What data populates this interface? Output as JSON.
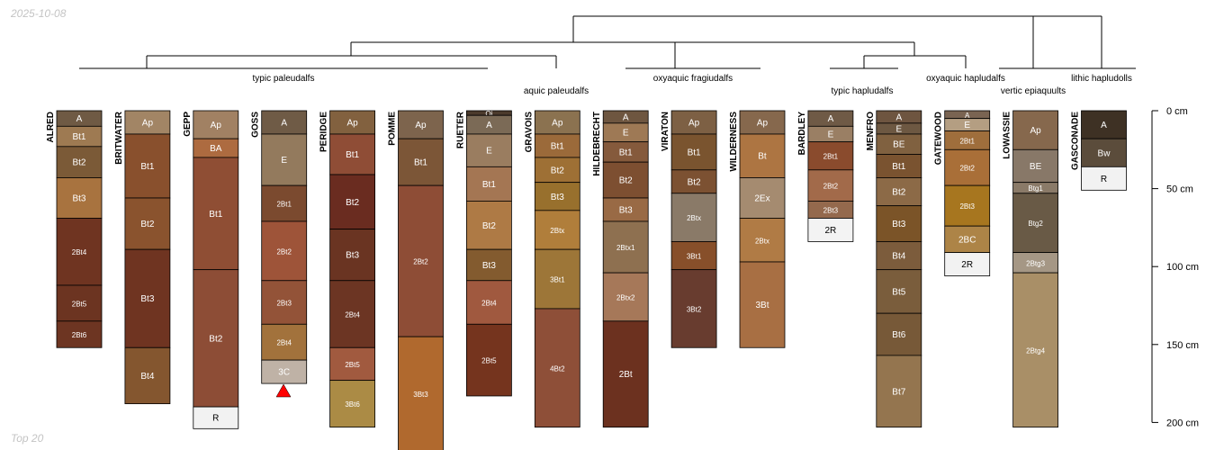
{
  "date": "2025-10-08",
  "footer": "Top 20",
  "depth_axis": {
    "unit": "cm",
    "ticks": [
      0,
      50,
      100,
      150,
      200
    ]
  },
  "groups": [
    {
      "label": "typic paleudalfs"
    },
    {
      "label": "aquic paleudalfs"
    },
    {
      "label": "oxyaquic fragiudalfs"
    },
    {
      "label": "typic hapludalfs"
    },
    {
      "label": "oxyaquic hapludalfs"
    },
    {
      "label": "vertic epiaquults"
    },
    {
      "label": "lithic hapludolls"
    }
  ],
  "profiles": [
    {
      "name": "ALRED",
      "horizons": [
        {
          "name": "A",
          "top": 0,
          "bottom": 10,
          "color": "#6f5a44"
        },
        {
          "name": "Bt1",
          "top": 10,
          "bottom": 23,
          "color": "#9e7a52"
        },
        {
          "name": "Bt2",
          "top": 23,
          "bottom": 43,
          "color": "#7b5a37"
        },
        {
          "name": "Bt3",
          "top": 43,
          "bottom": 69,
          "color": "#a8733f"
        },
        {
          "name": "2Bt4",
          "top": 69,
          "bottom": 112,
          "color": "#6f3421"
        },
        {
          "name": "2Bt5",
          "top": 112,
          "bottom": 135,
          "color": "#6c3421"
        },
        {
          "name": "2Bt6",
          "top": 135,
          "bottom": 152,
          "color": "#6d3522"
        }
      ]
    },
    {
      "name": "BRITWATER",
      "horizons": [
        {
          "name": "Ap",
          "top": 0,
          "bottom": 15,
          "color": "#a28565"
        },
        {
          "name": "Bt1",
          "top": 15,
          "bottom": 56,
          "color": "#89502d"
        },
        {
          "name": "Bt2",
          "top": 56,
          "bottom": 89,
          "color": "#8a532e"
        },
        {
          "name": "Bt3",
          "top": 89,
          "bottom": 152,
          "color": "#6f3421"
        },
        {
          "name": "Bt4",
          "top": 152,
          "bottom": 188,
          "color": "#84562f"
        }
      ]
    },
    {
      "name": "GEPP",
      "horizons": [
        {
          "name": "Ap",
          "top": 0,
          "bottom": 18,
          "color": "#a18163"
        },
        {
          "name": "BA",
          "top": 18,
          "bottom": 30,
          "color": "#ad6b40"
        },
        {
          "name": "Bt1",
          "top": 30,
          "bottom": 102,
          "color": "#8f4e34"
        },
        {
          "name": "Bt2",
          "top": 102,
          "bottom": 190,
          "color": "#8d4d36"
        },
        {
          "name": "R",
          "top": 190,
          "bottom": 204,
          "color": "#f2f2f2"
        }
      ]
    },
    {
      "name": "GOSS",
      "horizons": [
        {
          "name": "A",
          "top": 0,
          "bottom": 15,
          "color": "#6f5b46"
        },
        {
          "name": "E",
          "top": 15,
          "bottom": 48,
          "color": "#937a5d"
        },
        {
          "name": "2Bt1",
          "top": 48,
          "bottom": 71,
          "color": "#7b4a2f"
        },
        {
          "name": "2Bt2",
          "top": 71,
          "bottom": 109,
          "color": "#9e5439"
        },
        {
          "name": "2Bt3",
          "top": 109,
          "bottom": 137,
          "color": "#935338"
        },
        {
          "name": "2Bt4",
          "top": 137,
          "bottom": 160,
          "color": "#a2723c"
        },
        {
          "name": "3C",
          "top": 160,
          "bottom": 175,
          "color": "#bfb2a6"
        }
      ]
    },
    {
      "name": "PERIDGE",
      "horizons": [
        {
          "name": "Ap",
          "top": 0,
          "bottom": 15,
          "color": "#82613f"
        },
        {
          "name": "Bt1",
          "top": 15,
          "bottom": 41,
          "color": "#8f4d36"
        },
        {
          "name": "Bt2",
          "top": 41,
          "bottom": 76,
          "color": "#6a2c20"
        },
        {
          "name": "Bt3",
          "top": 76,
          "bottom": 109,
          "color": "#6a3422"
        },
        {
          "name": "2Bt4",
          "top": 109,
          "bottom": 152,
          "color": "#6c3523"
        },
        {
          "name": "2Bt5",
          "top": 152,
          "bottom": 173,
          "color": "#a15a3f"
        },
        {
          "name": "3Bt6",
          "top": 173,
          "bottom": 203,
          "color": "#ab8b45"
        }
      ]
    },
    {
      "name": "POMME",
      "horizons": [
        {
          "name": "Ap",
          "top": 0,
          "bottom": 18,
          "color": "#7d644d"
        },
        {
          "name": "Bt1",
          "top": 18,
          "bottom": 48,
          "color": "#7c5637"
        },
        {
          "name": "2Bt2",
          "top": 48,
          "bottom": 145,
          "color": "#8e4d36"
        },
        {
          "name": "3Bt3",
          "top": 145,
          "bottom": 218,
          "color": "#b0692e"
        }
      ]
    },
    {
      "name": "RUETER",
      "horizons": [
        {
          "name": "Oi",
          "top": 0,
          "bottom": 3,
          "color": "#4b3a2c"
        },
        {
          "name": "A",
          "top": 3,
          "bottom": 15,
          "color": "#7b6a56"
        },
        {
          "name": "E",
          "top": 15,
          "bottom": 36,
          "color": "#9a7d60"
        },
        {
          "name": "Bt1",
          "top": 36,
          "bottom": 58,
          "color": "#a47653"
        },
        {
          "name": "Bt2",
          "top": 58,
          "bottom": 89,
          "color": "#ae7a45"
        },
        {
          "name": "Bt3",
          "top": 89,
          "bottom": 109,
          "color": "#835b2f"
        },
        {
          "name": "2Bt4",
          "top": 109,
          "bottom": 137,
          "color": "#a0593f"
        },
        {
          "name": "2Bt5",
          "top": 137,
          "bottom": 183,
          "color": "#75341e"
        }
      ]
    },
    {
      "name": "GRAVOIS",
      "horizons": [
        {
          "name": "Ap",
          "top": 0,
          "bottom": 15,
          "color": "#8b7250"
        },
        {
          "name": "Bt1",
          "top": 15,
          "bottom": 30,
          "color": "#9b6a3a"
        },
        {
          "name": "Bt2",
          "top": 30,
          "bottom": 46,
          "color": "#9e7035"
        },
        {
          "name": "Bt3",
          "top": 46,
          "bottom": 64,
          "color": "#98702d"
        },
        {
          "name": "2Btx",
          "top": 64,
          "bottom": 89,
          "color": "#b07e3b"
        },
        {
          "name": "3Bt1",
          "top": 89,
          "bottom": 127,
          "color": "#9d7638"
        },
        {
          "name": "4Bt2",
          "top": 127,
          "bottom": 203,
          "color": "#8e4f38"
        }
      ]
    },
    {
      "name": "HILDEBRECHT",
      "horizons": [
        {
          "name": "A",
          "top": 0,
          "bottom": 8,
          "color": "#6e5640"
        },
        {
          "name": "E",
          "top": 8,
          "bottom": 20,
          "color": "#9e7955"
        },
        {
          "name": "Bt1",
          "top": 20,
          "bottom": 33,
          "color": "#855a3c"
        },
        {
          "name": "Bt2",
          "top": 33,
          "bottom": 56,
          "color": "#7d4f31"
        },
        {
          "name": "Bt3",
          "top": 56,
          "bottom": 71,
          "color": "#996a45"
        },
        {
          "name": "2Btx1",
          "top": 71,
          "bottom": 104,
          "color": "#8e7050"
        },
        {
          "name": "2Btx2",
          "top": 104,
          "bottom": 135,
          "color": "#a67859"
        },
        {
          "name": "2Bt",
          "top": 135,
          "bottom": 203,
          "color": "#6c311f"
        }
      ]
    },
    {
      "name": "VIRATON",
      "horizons": [
        {
          "name": "Ap",
          "top": 0,
          "bottom": 15,
          "color": "#7d6044"
        },
        {
          "name": "Bt1",
          "top": 15,
          "bottom": 38,
          "color": "#7a542f"
        },
        {
          "name": "Bt2",
          "top": 38,
          "bottom": 53,
          "color": "#7c5132"
        },
        {
          "name": "2Btx",
          "top": 53,
          "bottom": 84,
          "color": "#8a7a68"
        },
        {
          "name": "3Bt1",
          "top": 84,
          "bottom": 102,
          "color": "#874f2a"
        },
        {
          "name": "3Bt2",
          "top": 102,
          "bottom": 152,
          "color": "#683c2f"
        }
      ]
    },
    {
      "name": "WILDERNESS",
      "horizons": [
        {
          "name": "Ap",
          "top": 0,
          "bottom": 15,
          "color": "#86684d"
        },
        {
          "name": "Bt",
          "top": 15,
          "bottom": 43,
          "color": "#ad7542"
        },
        {
          "name": "2Ex",
          "top": 43,
          "bottom": 69,
          "color": "#a58b70"
        },
        {
          "name": "2Btx",
          "top": 69,
          "bottom": 97,
          "color": "#b07b45"
        },
        {
          "name": "3Bt",
          "top": 97,
          "bottom": 152,
          "color": "#a86f43"
        }
      ]
    },
    {
      "name": "BARDLEY",
      "horizons": [
        {
          "name": "A",
          "top": 0,
          "bottom": 10,
          "color": "#6f5a46"
        },
        {
          "name": "E",
          "top": 10,
          "bottom": 20,
          "color": "#9a7f64"
        },
        {
          "name": "2Bt1",
          "top": 20,
          "bottom": 38,
          "color": "#8a4b2d"
        },
        {
          "name": "2Bt2",
          "top": 38,
          "bottom": 58,
          "color": "#a26a4a"
        },
        {
          "name": "2Bt3",
          "top": 58,
          "bottom": 69,
          "color": "#94694d"
        },
        {
          "name": "2R",
          "top": 69,
          "bottom": 84,
          "color": "#f3f3f3"
        }
      ]
    },
    {
      "name": "MENFRO",
      "horizons": [
        {
          "name": "A",
          "top": 0,
          "bottom": 8,
          "color": "#6e5540"
        },
        {
          "name": "E",
          "top": 8,
          "bottom": 15,
          "color": "#6d5842"
        },
        {
          "name": "BE",
          "top": 15,
          "bottom": 28,
          "color": "#806140"
        },
        {
          "name": "Bt1",
          "top": 28,
          "bottom": 43,
          "color": "#7a5330"
        },
        {
          "name": "Bt2",
          "top": 43,
          "bottom": 61,
          "color": "#8c6a47"
        },
        {
          "name": "Bt3",
          "top": 61,
          "bottom": 84,
          "color": "#7b5428"
        },
        {
          "name": "Bt4",
          "top": 84,
          "bottom": 102,
          "color": "#7c5c3c"
        },
        {
          "name": "Bt5",
          "top": 102,
          "bottom": 130,
          "color": "#7a5d3c"
        },
        {
          "name": "Bt6",
          "top": 130,
          "bottom": 157,
          "color": "#775938"
        },
        {
          "name": "Bt7",
          "top": 157,
          "bottom": 203,
          "color": "#94754f"
        }
      ]
    },
    {
      "name": "GATEWOOD",
      "horizons": [
        {
          "name": "A",
          "top": 0,
          "bottom": 5,
          "color": "#7a6452"
        },
        {
          "name": "E",
          "top": 5,
          "bottom": 13,
          "color": "#b49e82"
        },
        {
          "name": "2Bt1",
          "top": 13,
          "bottom": 25,
          "color": "#9f6e3c"
        },
        {
          "name": "2Bt2",
          "top": 25,
          "bottom": 48,
          "color": "#a96f38"
        },
        {
          "name": "2Bt3",
          "top": 48,
          "bottom": 74,
          "color": "#a7761f"
        },
        {
          "name": "2BC",
          "top": 74,
          "bottom": 91,
          "color": "#ad8447"
        },
        {
          "name": "2R",
          "top": 91,
          "bottom": 106,
          "color": "#f2f2f2"
        }
      ]
    },
    {
      "name": "LOWASSIE",
      "horizons": [
        {
          "name": "Ap",
          "top": 0,
          "bottom": 25,
          "color": "#86684d"
        },
        {
          "name": "BE",
          "top": 25,
          "bottom": 46,
          "color": "#887868"
        },
        {
          "name": "Btg1",
          "top": 46,
          "bottom": 53,
          "color": "#8a7a68"
        },
        {
          "name": "Btg2",
          "top": 53,
          "bottom": 91,
          "color": "#695a46"
        },
        {
          "name": "2Btg3",
          "top": 91,
          "bottom": 104,
          "color": "#a59785"
        },
        {
          "name": "2Btg4",
          "top": 104,
          "bottom": 203,
          "color": "#a98f67"
        }
      ]
    },
    {
      "name": "GASCONADE",
      "horizons": [
        {
          "name": "A",
          "top": 0,
          "bottom": 18,
          "color": "#3e3124"
        },
        {
          "name": "Bw",
          "top": 18,
          "bottom": 36,
          "color": "#5b4c3b"
        },
        {
          "name": "R",
          "top": 36,
          "bottom": 51,
          "color": "#f2f2f2"
        }
      ]
    }
  ]
}
